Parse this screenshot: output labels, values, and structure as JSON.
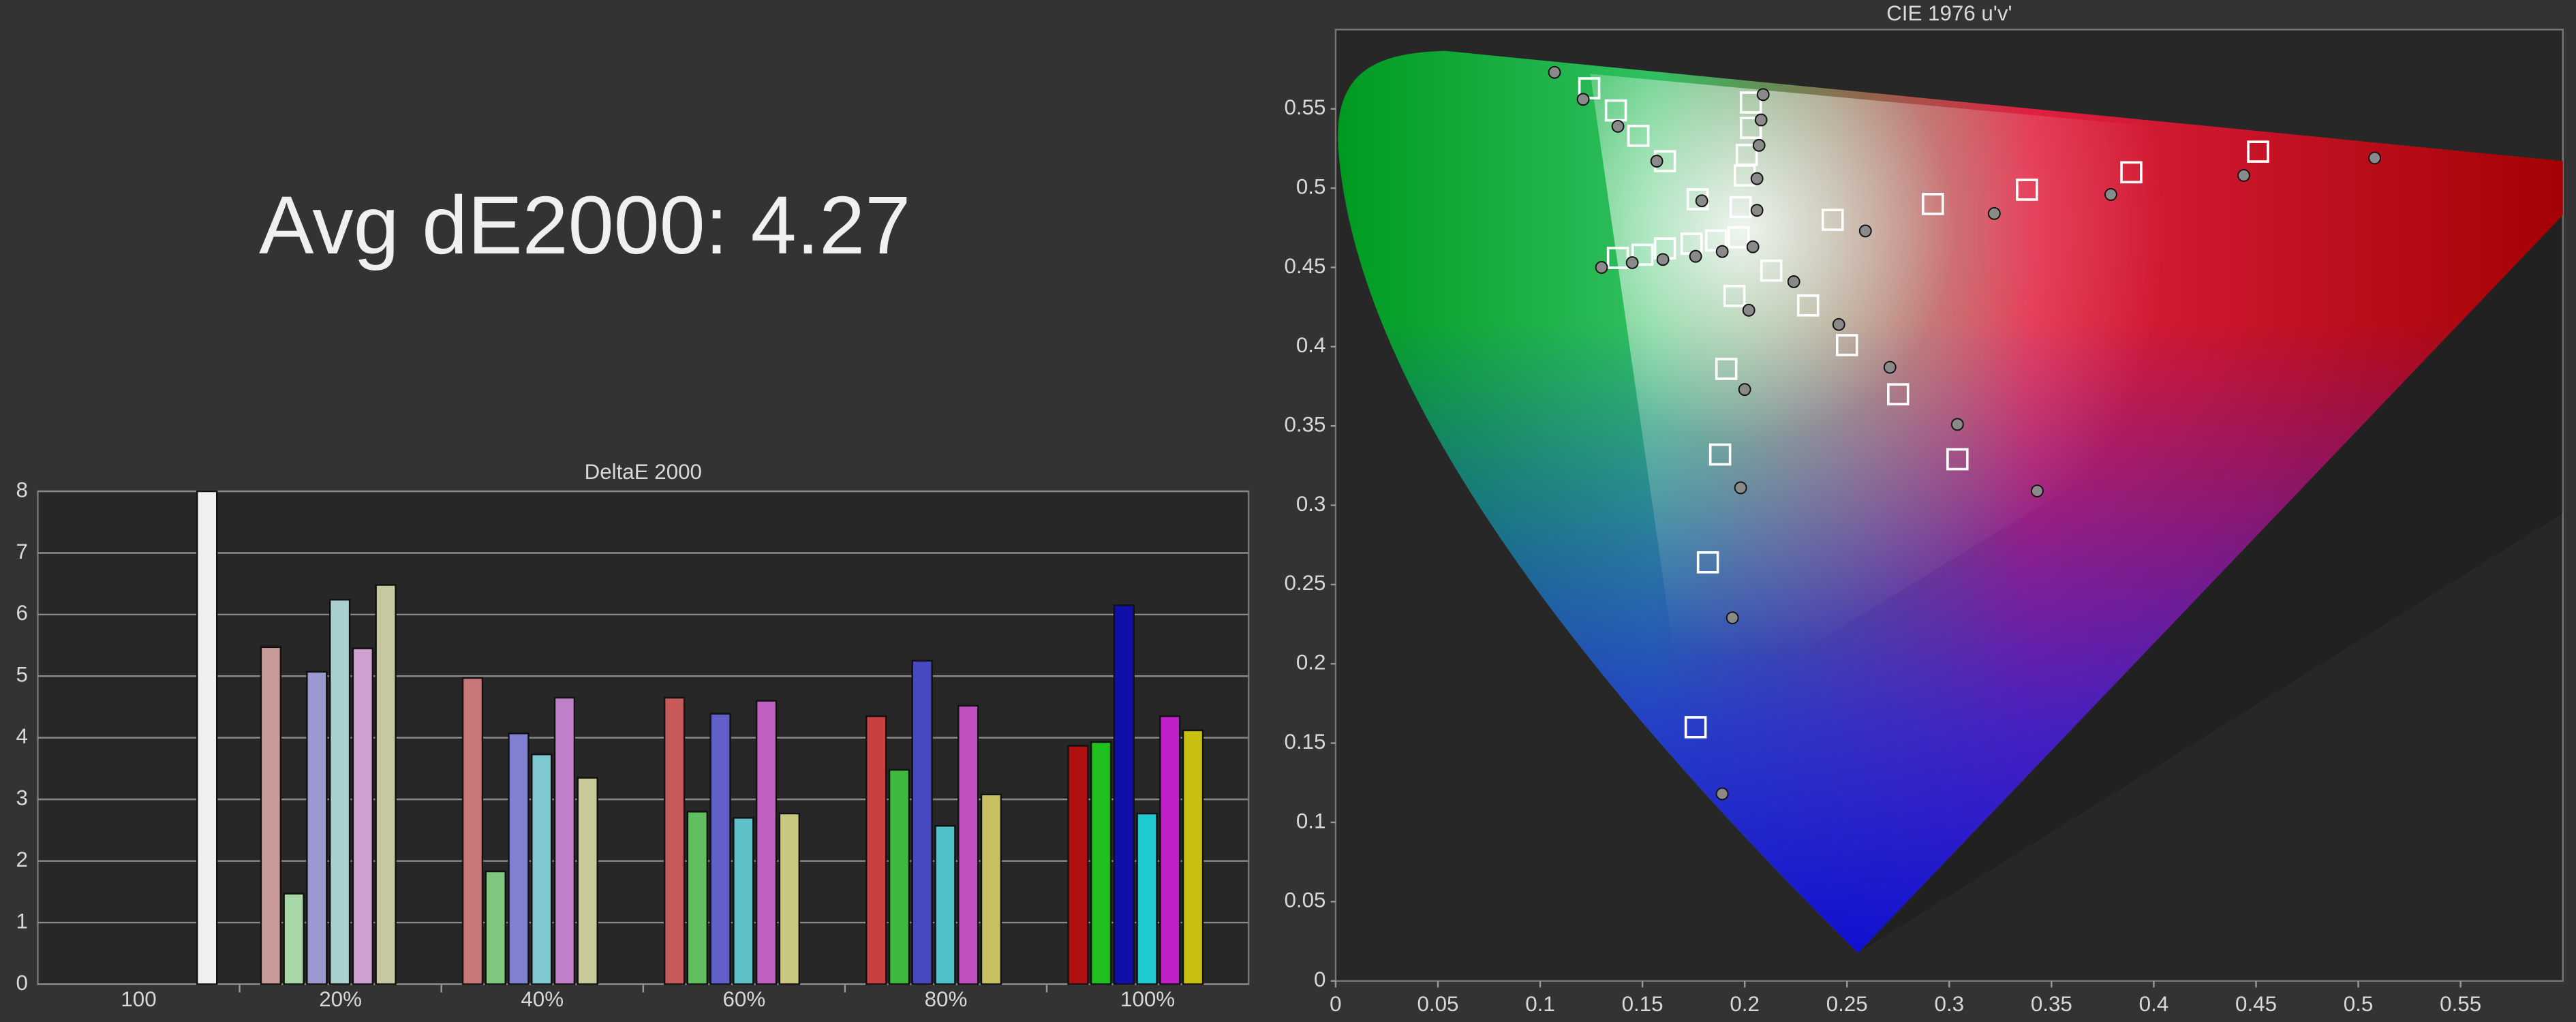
{
  "title_text": "Avg dE2000: 4.27",
  "chart_data": [
    {
      "type": "bar",
      "title": "DeltaE 2000",
      "categories": [
        "100",
        "20%",
        "40%",
        "60%",
        "80%",
        "100%"
      ],
      "ylim": [
        0,
        8
      ],
      "yticks": [
        0,
        1,
        2,
        3,
        4,
        5,
        6,
        7,
        8
      ],
      "grid": true,
      "series": [
        {
          "colors": [
            null,
            "#c89a9a",
            "#c87878",
            "#c85a5a",
            "#c84040",
            "#b01010"
          ],
          "values": [
            null,
            5.47,
            4.97,
            4.65,
            4.35,
            3.87
          ]
        },
        {
          "colors": [
            null,
            "#a8d8a8",
            "#80c880",
            "#60c060",
            "#40b840",
            "#20c020"
          ],
          "values": [
            null,
            1.47,
            1.83,
            2.8,
            3.48,
            3.93
          ]
        },
        {
          "colors": [
            null,
            "#9a9ad0",
            "#8080d0",
            "#6060c8",
            "#4848c0",
            "#1010a8"
          ],
          "values": [
            null,
            5.07,
            4.07,
            4.39,
            5.25,
            6.15
          ]
        },
        {
          "colors": [
            null,
            "#a8d0d0",
            "#80c8d0",
            "#60c0c8",
            "#50c0c8",
            "#20c8d0"
          ],
          "values": [
            null,
            6.24,
            3.73,
            2.7,
            2.57,
            2.77
          ]
        },
        {
          "colors": [
            null,
            "#d0a0d0",
            "#c080c8",
            "#c060c0",
            "#c050c0",
            "#c020c8"
          ],
          "values": [
            null,
            5.45,
            4.65,
            4.6,
            4.52,
            4.35
          ]
        },
        {
          "colors": [
            null,
            "#c8c8a0",
            "#c8c898",
            "#c8c880",
            "#c8c060",
            "#c8c010"
          ],
          "values": [
            null,
            6.48,
            3.35,
            2.77,
            3.08,
            4.12
          ]
        },
        {
          "colors": [
            "#f0f0f0",
            null,
            null,
            null,
            null,
            null
          ],
          "values": [
            8,
            null,
            null,
            null,
            null,
            null
          ]
        }
      ]
    },
    {
      "type": "scatter",
      "title": "CIE 1976 u'v'",
      "xlim": [
        0,
        0.6
      ],
      "ylim": [
        0,
        0.6
      ],
      "xticks": [
        0,
        0.05,
        0.1,
        0.15,
        0.2,
        0.25,
        0.3,
        0.35,
        0.4,
        0.45,
        0.5,
        0.55
      ],
      "yticks": [
        0,
        0.05,
        0.1,
        0.15,
        0.2,
        0.25,
        0.3,
        0.35,
        0.4,
        0.45,
        0.5,
        0.55
      ],
      "grid": false,
      "series": [
        {
          "marker": "square",
          "color": "#ffffff",
          "x": [
            0.124,
            0.137,
            0.148,
            0.161,
            0.177,
            0.203,
            0.203,
            0.201,
            0.2,
            0.198,
            0.197,
            0.243,
            0.292,
            0.338,
            0.389,
            0.451,
            0.138,
            0.15,
            0.161,
            0.174,
            0.186,
            0.195,
            0.191,
            0.188,
            0.182,
            0.176,
            0.213,
            0.231,
            0.25,
            0.275,
            0.304
          ],
          "values": [
            0.563,
            0.549,
            0.533,
            0.517,
            0.493,
            0.554,
            0.538,
            0.521,
            0.508,
            0.488,
            0.469,
            0.48,
            0.49,
            0.499,
            0.51,
            0.523,
            0.456,
            0.458,
            0.462,
            0.465,
            0.467,
            0.432,
            0.386,
            0.332,
            0.264,
            0.16,
            0.448,
            0.426,
            0.401,
            0.37,
            0.329
          ]
        },
        {
          "marker": "circle",
          "color": "#8a8a8a",
          "x": [
            0.107,
            0.121,
            0.138,
            0.157,
            0.179,
            0.209,
            0.208,
            0.207,
            0.206,
            0.206,
            0.204,
            0.259,
            0.322,
            0.379,
            0.444,
            0.508,
            0.13,
            0.145,
            0.16,
            0.176,
            0.189,
            0.202,
            0.2,
            0.198,
            0.194,
            0.189,
            0.224,
            0.246,
            0.271,
            0.304,
            0.343
          ],
          "values": [
            0.573,
            0.556,
            0.539,
            0.517,
            0.492,
            0.559,
            0.543,
            0.527,
            0.506,
            0.486,
            0.463,
            0.473,
            0.484,
            0.496,
            0.508,
            0.519,
            0.45,
            0.453,
            0.455,
            0.457,
            0.46,
            0.423,
            0.373,
            0.311,
            0.229,
            0.118,
            0.441,
            0.414,
            0.387,
            0.351,
            0.309
          ]
        }
      ]
    }
  ]
}
